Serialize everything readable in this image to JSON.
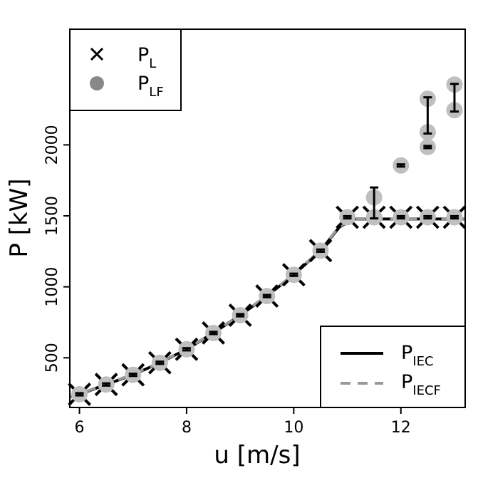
{
  "chart_data": {
    "type": "scatter",
    "xlabel": "u [m/s]",
    "ylabel": "P [kW]",
    "xlim": [
      5.82,
      13.2
    ],
    "ylim": [
      150,
      2815
    ],
    "xticks": [
      "6",
      "8",
      "10",
      "12"
    ],
    "yticks": [
      "500",
      "1000",
      "1500",
      "2000"
    ],
    "grid": false,
    "series": [
      {
        "name": "P_L",
        "marker": "x",
        "color": "#000000",
        "x": [
          6.0,
          6.5,
          7.0,
          7.5,
          8.0,
          8.5,
          9.0,
          9.5,
          10.0,
          10.5,
          11.0,
          11.5,
          12.0,
          12.5,
          13.0
        ],
        "y": [
          243,
          312,
          380,
          465,
          560,
          675,
          800,
          935,
          1085,
          1255,
          1490,
          1490,
          1490,
          1490,
          1490
        ]
      },
      {
        "name": "P_LF",
        "marker": "circle",
        "color": "#bfbfbf",
        "x": [
          6.0,
          6.5,
          7.0,
          7.5,
          8.0,
          8.5,
          9.0,
          9.5,
          10.0,
          10.5,
          11.0,
          11.5,
          11.5,
          12.0,
          12.0,
          12.5,
          12.5,
          12.5,
          12.5,
          13.0,
          13.0,
          13.0
        ],
        "y": [
          243,
          312,
          380,
          465,
          560,
          675,
          800,
          935,
          1085,
          1255,
          1490,
          1490,
          1630,
          1490,
          1855,
          1490,
          1985,
          2090,
          2325,
          1490,
          2245,
          2425
        ]
      },
      {
        "name": "error_bars",
        "color": "#000000",
        "intervals": [
          {
            "x": 6.0,
            "low": 235,
            "high": 251
          },
          {
            "x": 6.5,
            "low": 304,
            "high": 320
          },
          {
            "x": 7.0,
            "low": 372,
            "high": 388
          },
          {
            "x": 7.5,
            "low": 457,
            "high": 473
          },
          {
            "x": 8.0,
            "low": 552,
            "high": 568
          },
          {
            "x": 8.5,
            "low": 667,
            "high": 683
          },
          {
            "x": 9.0,
            "low": 792,
            "high": 808
          },
          {
            "x": 9.5,
            "low": 927,
            "high": 943
          },
          {
            "x": 10.0,
            "low": 1077,
            "high": 1093
          },
          {
            "x": 10.5,
            "low": 1247,
            "high": 1263
          },
          {
            "x": 11.0,
            "low": 1482,
            "high": 1498
          },
          {
            "x": 11.5,
            "low": 1482,
            "high": 1700
          },
          {
            "x": 12.0,
            "low": 1482,
            "high": 1498
          },
          {
            "x": 12.0,
            "low": 1847,
            "high": 1863
          },
          {
            "x": 12.5,
            "low": 1482,
            "high": 1498
          },
          {
            "x": 12.5,
            "low": 1977,
            "high": 1993
          },
          {
            "x": 12.5,
            "low": 2080,
            "high": 2335
          },
          {
            "x": 13.0,
            "low": 1482,
            "high": 1498
          },
          {
            "x": 13.0,
            "low": 2235,
            "high": 2430
          }
        ]
      },
      {
        "name": "P_IEC",
        "line": "solid",
        "color": "#000000",
        "x": [
          5.82,
          6.0,
          6.5,
          7.0,
          7.5,
          8.0,
          8.5,
          9.0,
          9.5,
          10.0,
          10.5,
          10.85,
          11.1,
          13.2
        ],
        "y": [
          225,
          243,
          312,
          380,
          465,
          560,
          675,
          800,
          935,
          1085,
          1255,
          1420,
          1478,
          1478
        ]
      },
      {
        "name": "P_IECF",
        "line": "dashed",
        "color": "#999999",
        "x": [
          5.82,
          6.0,
          6.5,
          7.0,
          7.5,
          8.0,
          8.5,
          9.0,
          9.5,
          10.0,
          10.5,
          10.85,
          11.1,
          13.2
        ],
        "y": [
          228,
          246,
          315,
          383,
          468,
          563,
          678,
          803,
          938,
          1088,
          1258,
          1425,
          1480,
          1480
        ]
      }
    ],
    "legend_top_left": [
      {
        "symbol": "x",
        "label_main": "P",
        "label_sub": "L"
      },
      {
        "symbol": "circle",
        "label_main": "P",
        "label_sub": "LF"
      }
    ],
    "legend_bottom_right": [
      {
        "symbol": "solid-line",
        "label_main": "P",
        "label_sub": "IEC"
      },
      {
        "symbol": "dashed-line",
        "label_main": "P",
        "label_sub": "IECF"
      }
    ],
    "legend_placement": [
      "top-left",
      "bottom-right"
    ]
  }
}
